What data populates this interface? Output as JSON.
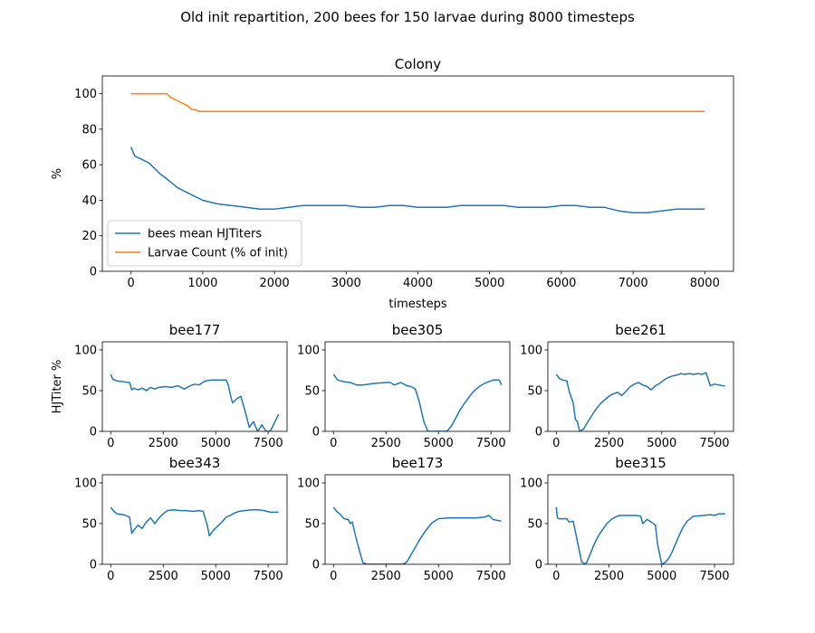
{
  "figure": {
    "suptitle": "Old init repartition, 200 bees for 150 larvae during 8000 timesteps"
  },
  "chart_data": [
    {
      "id": "colony",
      "type": "line",
      "title": "Colony",
      "xlabel": "timesteps",
      "ylabel": "%",
      "xlim": [
        -400,
        8400
      ],
      "ylim": [
        0,
        110
      ],
      "xticks": [
        0,
        1000,
        2000,
        3000,
        4000,
        5000,
        6000,
        7000,
        8000
      ],
      "yticks": [
        0,
        20,
        40,
        60,
        80,
        100
      ],
      "legend": "lower-left",
      "series": [
        {
          "name": "bees mean HJTiters",
          "color": "#1f77b4",
          "x": [
            0,
            50,
            150,
            250,
            400,
            500,
            650,
            800,
            1000,
            1200,
            1400,
            1600,
            1800,
            2000,
            2200,
            2400,
            2600,
            2800,
            3000,
            3200,
            3400,
            3600,
            3800,
            4000,
            4200,
            4400,
            4600,
            4800,
            5000,
            5200,
            5400,
            5600,
            5800,
            6000,
            6200,
            6400,
            6600,
            6800,
            7000,
            7200,
            7400,
            7600,
            7800,
            8000
          ],
          "y": [
            70,
            65,
            63,
            61,
            55,
            52,
            47,
            44,
            40,
            38,
            37,
            36,
            35,
            35,
            36,
            37,
            37,
            37,
            37,
            36,
            36,
            37,
            37,
            36,
            36,
            36,
            37,
            37,
            37,
            37,
            36,
            36,
            36,
            37,
            37,
            36,
            36,
            34,
            33,
            33,
            34,
            35,
            35,
            35
          ]
        },
        {
          "name": "Larvae Count (% of init)",
          "color": "#ff7f0e",
          "x": [
            0,
            500,
            550,
            600,
            650,
            700,
            750,
            800,
            850,
            900,
            950,
            1000,
            8000
          ],
          "y": [
            100,
            100,
            98,
            97,
            96,
            95,
            94,
            93,
            91,
            91,
            90,
            90,
            90
          ]
        }
      ]
    },
    {
      "id": "bee177",
      "type": "line",
      "title": "bee177",
      "ylabel": "HJTiter %",
      "xlim": [
        -400,
        8400
      ],
      "ylim": [
        0,
        110
      ],
      "xticks": [
        0,
        2500,
        5000,
        7500
      ],
      "yticks": [
        0,
        50,
        100
      ],
      "series": [
        {
          "color": "#1f77b4",
          "x": [
            0,
            100,
            300,
            600,
            900,
            1000,
            1100,
            1300,
            1500,
            1700,
            1900,
            2100,
            2300,
            2600,
            2900,
            3200,
            3500,
            3800,
            4000,
            4200,
            4500,
            4800,
            5000,
            5500,
            5600,
            5700,
            5800,
            6000,
            6200,
            6400,
            6600,
            6800,
            7000,
            7200,
            7400,
            7600,
            8000
          ],
          "y": [
            70,
            64,
            62,
            61,
            60,
            51,
            53,
            51,
            53,
            50,
            54,
            52,
            54,
            55,
            54,
            56,
            52,
            56,
            58,
            57,
            62,
            63,
            63,
            63,
            57,
            45,
            35,
            40,
            43,
            25,
            5,
            12,
            0,
            8,
            0,
            0,
            21
          ]
        }
      ]
    },
    {
      "id": "bee305",
      "type": "line",
      "title": "bee305",
      "xlim": [
        -400,
        8400
      ],
      "ylim": [
        0,
        110
      ],
      "xticks": [
        0,
        2500,
        5000,
        7500
      ],
      "yticks": [
        0,
        50,
        100
      ],
      "series": [
        {
          "color": "#1f77b4",
          "x": [
            0,
            200,
            500,
            800,
            1100,
            1400,
            1700,
            2000,
            2500,
            2700,
            2900,
            3200,
            3500,
            3700,
            3900,
            4100,
            4300,
            4500,
            5000,
            5400,
            5600,
            5800,
            6000,
            6200,
            6400,
            6600,
            6800,
            7000,
            7200,
            7400,
            7600,
            7900,
            8000
          ],
          "y": [
            70,
            63,
            61,
            60,
            57,
            57,
            58,
            59,
            60,
            60,
            57,
            60,
            56,
            55,
            52,
            35,
            12,
            0,
            0,
            0,
            6,
            15,
            25,
            33,
            40,
            47,
            52,
            56,
            59,
            61,
            63,
            63,
            57
          ]
        }
      ]
    },
    {
      "id": "bee261",
      "type": "line",
      "title": "bee261",
      "xlim": [
        -400,
        8400
      ],
      "ylim": [
        0,
        110
      ],
      "xticks": [
        0,
        2500,
        5000,
        7500
      ],
      "yticks": [
        0,
        50,
        100
      ],
      "series": [
        {
          "color": "#1f77b4",
          "x": [
            0,
            150,
            300,
            500,
            600,
            800,
            900,
            1000,
            1100,
            1300,
            1500,
            1700,
            1900,
            2100,
            2300,
            2600,
            2900,
            3100,
            3300,
            3500,
            3700,
            3900,
            4100,
            4300,
            4500,
            4700,
            4900,
            5100,
            5300,
            5500,
            5700,
            5900,
            6100,
            6300,
            6500,
            6700,
            6900,
            7100,
            7300,
            7500,
            7700,
            7900,
            8000
          ],
          "y": [
            70,
            65,
            63,
            62,
            50,
            35,
            15,
            12,
            0,
            3,
            12,
            20,
            28,
            34,
            39,
            45,
            48,
            44,
            49,
            55,
            58,
            60,
            57,
            55,
            51,
            56,
            59,
            63,
            66,
            68,
            69,
            71,
            70,
            71,
            70,
            71,
            70,
            72,
            56,
            58,
            57,
            56,
            56
          ]
        }
      ]
    },
    {
      "id": "bee343",
      "type": "line",
      "title": "bee343",
      "xlim": [
        -400,
        8400
      ],
      "ylim": [
        0,
        110
      ],
      "xticks": [
        0,
        2500,
        5000,
        7500
      ],
      "yticks": [
        0,
        50,
        100
      ],
      "series": [
        {
          "color": "#1f77b4",
          "x": [
            0,
            150,
            300,
            600,
            900,
            1000,
            1100,
            1300,
            1500,
            1700,
            1900,
            2100,
            2300,
            2500,
            2700,
            3000,
            3300,
            3600,
            3900,
            4200,
            4400,
            4600,
            4700,
            4900,
            5100,
            5300,
            5500,
            5700,
            5900,
            6100,
            6400,
            6700,
            7000,
            7300,
            7600,
            8000
          ],
          "y": [
            70,
            65,
            62,
            61,
            58,
            38,
            42,
            48,
            44,
            52,
            57,
            50,
            57,
            62,
            66,
            67,
            66,
            66,
            65,
            66,
            65,
            48,
            35,
            42,
            47,
            52,
            58,
            60,
            63,
            65,
            66,
            67,
            67,
            66,
            64,
            64
          ]
        }
      ]
    },
    {
      "id": "bee173",
      "type": "line",
      "title": "bee173",
      "xlim": [
        -400,
        8400
      ],
      "ylim": [
        0,
        110
      ],
      "xticks": [
        0,
        2500,
        5000,
        7500
      ],
      "yticks": [
        0,
        50,
        100
      ],
      "series": [
        {
          "color": "#1f77b4",
          "x": [
            0,
            150,
            300,
            500,
            700,
            800,
            900,
            1000,
            1200,
            1400,
            1600,
            2000,
            2500,
            3000,
            3300,
            3500,
            3700,
            3900,
            4100,
            4300,
            4500,
            4700,
            5000,
            5500,
            6000,
            6400,
            6800,
            7200,
            7400,
            7600,
            8000
          ],
          "y": [
            70,
            65,
            62,
            56,
            55,
            50,
            52,
            40,
            20,
            2,
            0,
            0,
            0,
            0,
            0,
            3,
            12,
            21,
            30,
            38,
            45,
            51,
            56,
            57,
            57,
            57,
            57,
            58,
            60,
            55,
            53
          ]
        }
      ]
    },
    {
      "id": "bee315",
      "type": "line",
      "title": "bee315",
      "xlim": [
        -400,
        8400
      ],
      "ylim": [
        0,
        110
      ],
      "xticks": [
        0,
        2500,
        5000,
        7500
      ],
      "yticks": [
        0,
        50,
        100
      ],
      "series": [
        {
          "color": "#1f77b4",
          "x": [
            0,
            50,
            100,
            500,
            600,
            800,
            1000,
            1200,
            1400,
            1600,
            1800,
            2000,
            2200,
            2400,
            2600,
            2800,
            3000,
            3500,
            3800,
            4000,
            4100,
            4300,
            4500,
            4700,
            4800,
            5000,
            5200,
            5400,
            5600,
            5800,
            6000,
            6200,
            6500,
            7000,
            7300,
            7500,
            7700,
            8000
          ],
          "y": [
            70,
            57,
            56,
            56,
            52,
            53,
            28,
            3,
            0,
            12,
            25,
            35,
            43,
            50,
            55,
            58,
            60,
            60,
            60,
            59,
            50,
            55,
            52,
            48,
            25,
            0,
            3,
            10,
            22,
            34,
            45,
            53,
            59,
            60,
            61,
            60,
            62,
            62
          ]
        }
      ]
    }
  ]
}
